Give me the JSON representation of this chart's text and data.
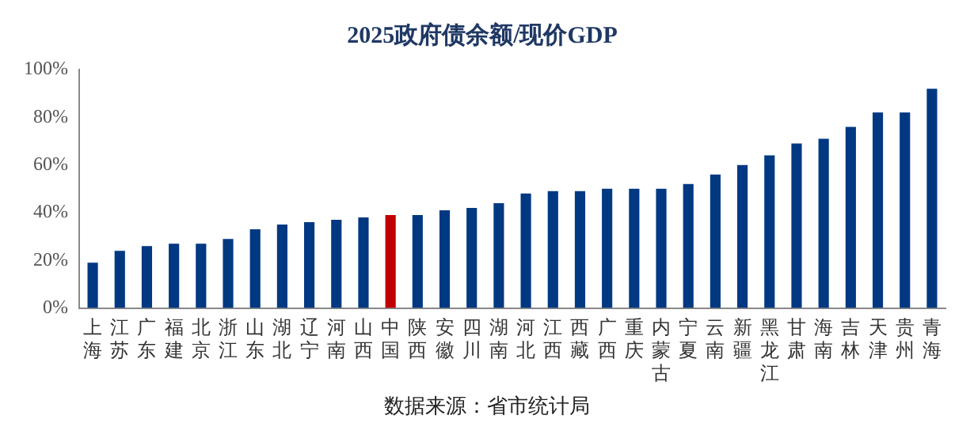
{
  "chart_data": {
    "type": "bar",
    "title": "2025政府债余额/现价GDP",
    "categories": [
      "上海",
      "江苏",
      "广东",
      "福建",
      "北京",
      "浙江",
      "山东",
      "湖北",
      "辽宁",
      "河南",
      "山西",
      "中国",
      "陕西",
      "安徽",
      "四川",
      "湖南",
      "河北",
      "江西",
      "西藏",
      "广西",
      "重庆",
      "内蒙古",
      "宁夏",
      "云南",
      "新疆",
      "黑龙江",
      "甘肃",
      "海南",
      "吉林",
      "天津",
      "贵州",
      "青海"
    ],
    "values": [
      19,
      24,
      26,
      27,
      27,
      29,
      33,
      35,
      36,
      37,
      38,
      39,
      39,
      41,
      42,
      44,
      48,
      49,
      49,
      50,
      50,
      50,
      52,
      56,
      60,
      64,
      69,
      71,
      76,
      82,
      82,
      92
    ],
    "colors": [
      "#003882",
      "#003882",
      "#003882",
      "#003882",
      "#003882",
      "#003882",
      "#003882",
      "#003882",
      "#003882",
      "#003882",
      "#003882",
      "#c00000",
      "#003882",
      "#003882",
      "#003882",
      "#003882",
      "#003882",
      "#003882",
      "#003882",
      "#003882",
      "#003882",
      "#003882",
      "#003882",
      "#003882",
      "#003882",
      "#003882",
      "#003882",
      "#003882",
      "#003882",
      "#003882",
      "#003882",
      "#003882"
    ],
    "ylim": [
      0,
      100
    ],
    "yticks": [
      {
        "value": 0,
        "label": "0%"
      },
      {
        "value": 20,
        "label": "20%"
      },
      {
        "value": 40,
        "label": "40%"
      },
      {
        "value": 60,
        "label": "60%"
      },
      {
        "value": 80,
        "label": "80%"
      },
      {
        "value": 100,
        "label": "100%"
      }
    ],
    "grid": false,
    "legend": false,
    "annotations": [
      "数据来源：省市统计局"
    ]
  }
}
